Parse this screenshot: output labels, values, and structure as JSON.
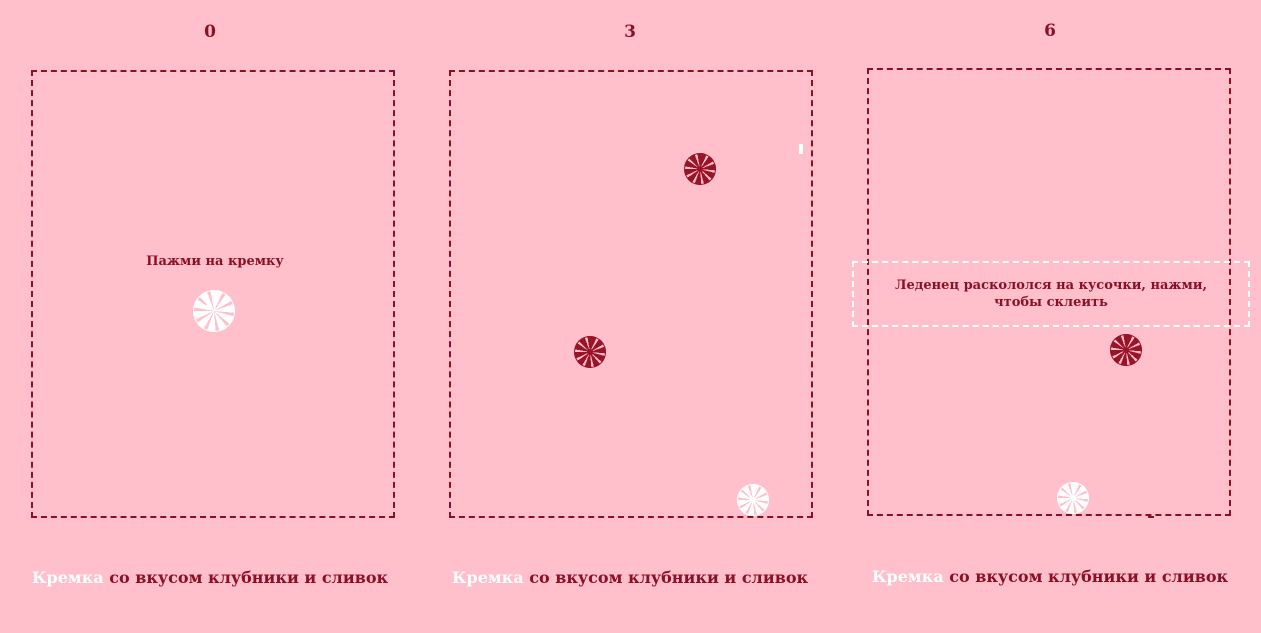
{
  "panels": [
    {
      "counter": "0",
      "hint": "Пажми на кремку",
      "footer": {
        "brand": "Кремка",
        "rest": " со вкусом клубники и сливок"
      },
      "candies": [
        {
          "color": "white-icon"
        }
      ]
    },
    {
      "counter": "3",
      "footer": {
        "brand": "Кремка",
        "rest": " со вкусом клубники и сливок"
      },
      "candies": [
        {
          "color": "red-icon"
        },
        {
          "color": "red-icon"
        },
        {
          "color": "white-icon"
        }
      ]
    },
    {
      "counter": "6",
      "notice": "Леденец раскололся на кусочки, нажми, чтобы склеить",
      "footer": {
        "brand": "Кремка",
        "rest": " со вкусом клубники и сливок"
      },
      "candies": [
        {
          "color": "red-icon"
        },
        {
          "color": "white-icon"
        }
      ]
    }
  ],
  "colors": {
    "background": "#ffbfcb",
    "accent": "#8b1024",
    "candy_red": "#9a1428",
    "candy_white": "#ffffff"
  }
}
